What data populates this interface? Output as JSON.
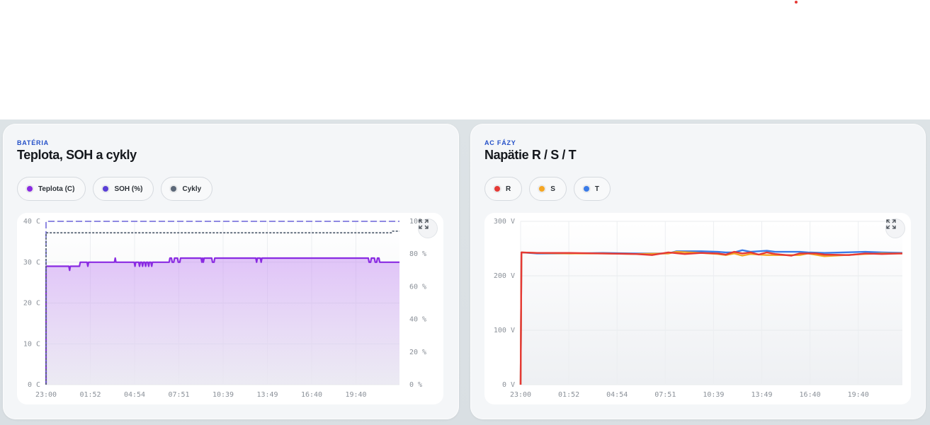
{
  "cards": [
    {
      "eyebrow": "BATÉRIA",
      "title": "Teplota, SOH a cykly",
      "legend": [
        {
          "label": "Teplota (C)",
          "color": "#8a2be2"
        },
        {
          "label": "SOH (%)",
          "color": "#5a3fd6"
        },
        {
          "label": "Cykly",
          "color": "#5c6878"
        }
      ]
    },
    {
      "eyebrow": "AC FÁZY",
      "title": "Napätie R / S / T",
      "legend": [
        {
          "label": "R",
          "color": "#e53935"
        },
        {
          "label": "S",
          "color": "#f5a623"
        },
        {
          "label": "T",
          "color": "#3a7be8"
        }
      ]
    }
  ],
  "chart_data": [
    {
      "type": "line",
      "x_ticks": [
        "23:00",
        "01:52",
        "04:54",
        "07:51",
        "10:39",
        "13:49",
        "16:40",
        "19:40"
      ],
      "y_left_ticks": [
        "0 C",
        "10 C",
        "20 C",
        "30 C",
        "40 C"
      ],
      "y_right_ticks": [
        "0 %",
        "20 %",
        "40 %",
        "60 %",
        "80 %",
        "100 %"
      ],
      "ylim_left": [
        0,
        40
      ],
      "ylim_right": [
        0,
        100
      ],
      "x_range_hours": [
        0,
        24
      ],
      "grid": true,
      "series": [
        {
          "name": "Teplota (C)",
          "color": "#8a2be2",
          "axis": "left",
          "style": "solid-area",
          "points": [
            [
              0,
              0
            ],
            [
              0,
              29
            ],
            [
              3,
              29
            ],
            [
              3.1,
              28
            ],
            [
              3.2,
              29
            ],
            [
              4.4,
              29
            ],
            [
              4.5,
              30
            ],
            [
              5.4,
              30
            ],
            [
              5.5,
              29
            ],
            [
              5.6,
              30
            ],
            [
              9,
              30
            ],
            [
              9.1,
              31
            ],
            [
              9.2,
              30
            ],
            [
              11.6,
              30
            ],
            [
              11.7,
              29
            ],
            [
              11.8,
              30
            ],
            [
              12.2,
              30
            ],
            [
              12.3,
              29
            ],
            [
              12.4,
              30
            ],
            [
              12.6,
              30
            ],
            [
              12.7,
              29
            ],
            [
              12.8,
              30
            ],
            [
              13,
              30
            ],
            [
              13.1,
              29
            ],
            [
              13.2,
              30
            ],
            [
              13.4,
              30
            ],
            [
              13.5,
              29
            ],
            [
              13.6,
              30
            ],
            [
              13.8,
              30
            ],
            [
              13.9,
              29
            ],
            [
              14,
              30
            ],
            [
              16.2,
              30
            ],
            [
              16.3,
              31
            ],
            [
              16.5,
              31
            ],
            [
              16.6,
              30
            ],
            [
              16.8,
              30
            ],
            [
              16.9,
              31
            ],
            [
              17.3,
              31
            ],
            [
              17.4,
              30
            ],
            [
              17.6,
              30
            ],
            [
              17.7,
              31
            ],
            [
              20.4,
              31
            ],
            [
              20.5,
              30
            ],
            [
              20.6,
              31
            ],
            [
              20.7,
              30
            ],
            [
              20.8,
              31
            ],
            [
              21.8,
              31
            ],
            [
              21.9,
              30
            ],
            [
              22.1,
              30
            ],
            [
              22.2,
              31
            ],
            [
              27.6,
              31
            ],
            [
              27.7,
              30
            ],
            [
              27.8,
              31
            ],
            [
              28.2,
              31
            ],
            [
              28.3,
              30
            ],
            [
              28.4,
              31
            ],
            [
              42.4,
              31
            ],
            [
              42.5,
              30
            ],
            [
              42.7,
              30
            ],
            [
              42.8,
              31
            ],
            [
              43.2,
              31
            ],
            [
              43.3,
              30
            ],
            [
              43.5,
              30
            ],
            [
              43.6,
              31
            ],
            [
              43.8,
              31
            ],
            [
              43.9,
              30
            ],
            [
              46.5,
              30
            ]
          ]
        },
        {
          "name": "SOH (%)",
          "color": "#5a3fd6",
          "axis": "right",
          "style": "dashed",
          "points": [
            [
              0,
              0
            ],
            [
              0,
              100
            ],
            [
              46.5,
              100
            ]
          ]
        },
        {
          "name": "Cykly",
          "color": "#5c6878",
          "axis": "right",
          "style": "dotted",
          "points": [
            [
              0,
              0
            ],
            [
              0,
              93
            ],
            [
              45.5,
              93
            ],
            [
              45.6,
              94
            ],
            [
              46.5,
              94
            ]
          ]
        }
      ]
    },
    {
      "type": "line",
      "x_ticks": [
        "23:00",
        "01:52",
        "04:54",
        "07:51",
        "10:39",
        "13:49",
        "16:40",
        "19:40"
      ],
      "y_ticks": [
        "0 V",
        "100 V",
        "200 V",
        "300 V"
      ],
      "ylim": [
        0,
        300
      ],
      "grid": true,
      "series": [
        {
          "name": "T",
          "color": "#3a7be8",
          "points": [
            [
              0,
              0
            ],
            [
              0.1,
              243
            ],
            [
              2,
              241
            ],
            [
              6,
              241
            ],
            [
              10,
              242
            ],
            [
              14,
              241
            ],
            [
              18,
              241
            ],
            [
              19,
              245
            ],
            [
              22,
              245
            ],
            [
              24,
              244
            ],
            [
              25,
              243
            ],
            [
              26,
              243
            ],
            [
              27,
              247
            ],
            [
              28,
              244
            ],
            [
              30,
              246
            ],
            [
              31,
              244
            ],
            [
              34,
              244
            ],
            [
              35,
              243
            ],
            [
              37,
              242
            ],
            [
              42,
              244
            ],
            [
              44,
              243
            ],
            [
              46.5,
              242
            ]
          ]
        },
        {
          "name": "S",
          "color": "#f5a623",
          "points": [
            [
              0,
              0
            ],
            [
              0.1,
              243
            ],
            [
              2,
              242
            ],
            [
              6,
              241
            ],
            [
              10,
              241
            ],
            [
              14,
              240
            ],
            [
              18,
              241
            ],
            [
              19,
              244
            ],
            [
              22,
              242
            ],
            [
              24,
              240
            ],
            [
              25,
              238
            ],
            [
              26,
              241
            ],
            [
              27,
              237
            ],
            [
              28,
              240
            ],
            [
              30,
              238
            ],
            [
              31,
              238
            ],
            [
              34,
              238
            ],
            [
              35,
              241
            ],
            [
              37,
              236
            ],
            [
              42,
              240
            ],
            [
              44,
              241
            ],
            [
              46.5,
              241
            ]
          ]
        },
        {
          "name": "R",
          "color": "#e53935",
          "points": [
            [
              0,
              0
            ],
            [
              0.1,
              243
            ],
            [
              2,
              242
            ],
            [
              6,
              242
            ],
            [
              10,
              241
            ],
            [
              14,
              240
            ],
            [
              16,
              238
            ],
            [
              18,
              243
            ],
            [
              20,
              240
            ],
            [
              22,
              242
            ],
            [
              24,
              241
            ],
            [
              25,
              239
            ],
            [
              26,
              244
            ],
            [
              27,
              241
            ],
            [
              28,
              243
            ],
            [
              29,
              239
            ],
            [
              30,
              243
            ],
            [
              31,
              240
            ],
            [
              33,
              237
            ],
            [
              34,
              241
            ],
            [
              36,
              241
            ],
            [
              37,
              239
            ],
            [
              40,
              238
            ],
            [
              42,
              241
            ],
            [
              44,
              240
            ],
            [
              46.5,
              241
            ]
          ]
        }
      ]
    }
  ]
}
